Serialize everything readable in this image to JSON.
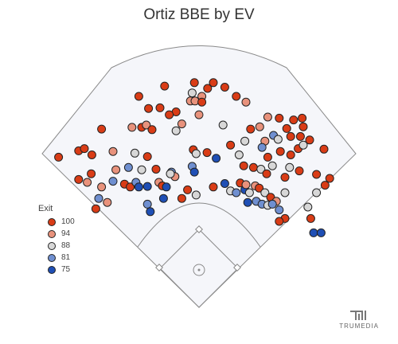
{
  "title": "Ortiz BBE by EV",
  "brand": {
    "name": "TRUMEDIA"
  },
  "legend": {
    "title": "Exit",
    "items": [
      {
        "label": "100",
        "color": "#d93c16"
      },
      {
        "label": "94",
        "color": "#e8927c"
      },
      {
        "label": "88",
        "color": "#d7d7d7"
      },
      {
        "label": "81",
        "color": "#6f8fd0"
      },
      {
        "label": "75",
        "color": "#1f4fb5"
      }
    ]
  },
  "chart_data": {
    "type": "scatter",
    "description_units": "hit location in field feet (x: left/right of home, y: distance toward center); ev = exit velocity mph",
    "legend_stops": [
      100,
      94,
      88,
      81,
      75
    ],
    "points": [
      {
        "x": -60,
        "y": 386,
        "ev": 101
      },
      {
        "x": -105,
        "y": 368,
        "ev": 102
      },
      {
        "x": -88,
        "y": 347,
        "ev": 100
      },
      {
        "x": -68,
        "y": 348,
        "ev": 99
      },
      {
        "x": -8,
        "y": 392,
        "ev": 101
      },
      {
        "x": 25,
        "y": 392,
        "ev": 100
      },
      {
        "x": 15,
        "y": 382,
        "ev": 99
      },
      {
        "x": -15,
        "y": 360,
        "ev": 95
      },
      {
        "x": -7,
        "y": 360,
        "ev": 94
      },
      {
        "x": 5,
        "y": 368,
        "ev": 92
      },
      {
        "x": -12,
        "y": 374,
        "ev": 88
      },
      {
        "x": 5,
        "y": 358,
        "ev": 101
      },
      {
        "x": 45,
        "y": 384,
        "ev": 100
      },
      {
        "x": 65,
        "y": 368,
        "ev": 99
      },
      {
        "x": 82,
        "y": 358,
        "ev": 94
      },
      {
        "x": -40,
        "y": 341,
        "ev": 102
      },
      {
        "x": -52,
        "y": 336,
        "ev": 99
      },
      {
        "x": 0,
        "y": 336,
        "ev": 95
      },
      {
        "x": 42,
        "y": 318,
        "ev": 88
      },
      {
        "x": 90,
        "y": 311,
        "ev": 100
      },
      {
        "x": 120,
        "y": 332,
        "ev": 94
      },
      {
        "x": 140,
        "y": 330,
        "ev": 100
      },
      {
        "x": 165,
        "y": 327,
        "ev": 101
      },
      {
        "x": 180,
        "y": 330,
        "ev": 100
      },
      {
        "x": 182,
        "y": 315,
        "ev": 101
      },
      {
        "x": 153,
        "y": 312,
        "ev": 101
      },
      {
        "x": 106,
        "y": 315,
        "ev": 94
      },
      {
        "x": 130,
        "y": 300,
        "ev": 81
      },
      {
        "x": 138,
        "y": 293,
        "ev": 88
      },
      {
        "x": 160,
        "y": 298,
        "ev": 101
      },
      {
        "x": 177,
        "y": 298,
        "ev": 101
      },
      {
        "x": 193,
        "y": 292,
        "ev": 101
      },
      {
        "x": 115,
        "y": 290,
        "ev": 94
      },
      {
        "x": 110,
        "y": 279,
        "ev": 81
      },
      {
        "x": 142,
        "y": 272,
        "ev": 100
      },
      {
        "x": 173,
        "y": 277,
        "ev": 101
      },
      {
        "x": 182,
        "y": 283,
        "ev": 88
      },
      {
        "x": 218,
        "y": 276,
        "ev": 100
      },
      {
        "x": -170,
        "y": 311,
        "ev": 101
      },
      {
        "x": -117,
        "y": 314,
        "ev": 94
      },
      {
        "x": -100,
        "y": 314,
        "ev": 100
      },
      {
        "x": -92,
        "y": 318,
        "ev": 95
      },
      {
        "x": -82,
        "y": 310,
        "ev": 100
      },
      {
        "x": -30,
        "y": 320,
        "ev": 94
      },
      {
        "x": -40,
        "y": 308,
        "ev": 88
      },
      {
        "x": -210,
        "y": 273,
        "ev": 101
      },
      {
        "x": -200,
        "y": 277,
        "ev": 101
      },
      {
        "x": -187,
        "y": 266,
        "ev": 100
      },
      {
        "x": -150,
        "y": 272,
        "ev": 94
      },
      {
        "x": -112,
        "y": 269,
        "ev": 88
      },
      {
        "x": -90,
        "y": 263,
        "ev": 100
      },
      {
        "x": -10,
        "y": 275,
        "ev": 101
      },
      {
        "x": -5,
        "y": 268,
        "ev": 88
      },
      {
        "x": 14,
        "y": 270,
        "ev": 100
      },
      {
        "x": 55,
        "y": 283,
        "ev": 101
      },
      {
        "x": 80,
        "y": 290,
        "ev": 88
      },
      {
        "x": -245,
        "y": 262,
        "ev": 101
      },
      {
        "x": -188,
        "y": 233,
        "ev": 100
      },
      {
        "x": -145,
        "y": 240,
        "ev": 94
      },
      {
        "x": -123,
        "y": 244,
        "ev": 81
      },
      {
        "x": -100,
        "y": 240,
        "ev": 88
      },
      {
        "x": -75,
        "y": 241,
        "ev": 100
      },
      {
        "x": -48,
        "y": 236,
        "ev": 81
      },
      {
        "x": -42,
        "y": 228,
        "ev": 94
      },
      {
        "x": -12,
        "y": 246,
        "ev": 81
      },
      {
        "x": -8,
        "y": 236,
        "ev": 75
      },
      {
        "x": 30,
        "y": 260,
        "ev": 75
      },
      {
        "x": 70,
        "y": 266,
        "ev": 88
      },
      {
        "x": 78,
        "y": 247,
        "ev": 100
      },
      {
        "x": 95,
        "y": 244,
        "ev": 101
      },
      {
        "x": 108,
        "y": 241,
        "ev": 88
      },
      {
        "x": 120,
        "y": 262,
        "ev": 100
      },
      {
        "x": 118,
        "y": 233,
        "ev": 101
      },
      {
        "x": 128,
        "y": 247,
        "ev": 88
      },
      {
        "x": 150,
        "y": 227,
        "ev": 101
      },
      {
        "x": 158,
        "y": 244,
        "ev": 88
      },
      {
        "x": 175,
        "y": 238,
        "ev": 101
      },
      {
        "x": 205,
        "y": 232,
        "ev": 101
      },
      {
        "x": 228,
        "y": 225,
        "ev": 101
      },
      {
        "x": 160,
        "y": 266,
        "ev": 101
      },
      {
        "x": -210,
        "y": 223,
        "ev": 101
      },
      {
        "x": -195,
        "y": 218,
        "ev": 94
      },
      {
        "x": -170,
        "y": 210,
        "ev": 94
      },
      {
        "x": -150,
        "y": 220,
        "ev": 81
      },
      {
        "x": -130,
        "y": 215,
        "ev": 100
      },
      {
        "x": -120,
        "y": 210,
        "ev": 101
      },
      {
        "x": -110,
        "y": 218,
        "ev": 81
      },
      {
        "x": -105,
        "y": 210,
        "ev": 75
      },
      {
        "x": -90,
        "y": 211,
        "ev": 75
      },
      {
        "x": -70,
        "y": 218,
        "ev": 94
      },
      {
        "x": -64,
        "y": 212,
        "ev": 100
      },
      {
        "x": -57,
        "y": 210,
        "ev": 75
      },
      {
        "x": -50,
        "y": 233,
        "ev": 88
      },
      {
        "x": -20,
        "y": 205,
        "ev": 101
      },
      {
        "x": 25,
        "y": 210,
        "ev": 100
      },
      {
        "x": 45,
        "y": 216,
        "ev": 75
      },
      {
        "x": 55,
        "y": 203,
        "ev": 88
      },
      {
        "x": 65,
        "y": 200,
        "ev": 81
      },
      {
        "x": 72,
        "y": 217,
        "ev": 101
      },
      {
        "x": 80,
        "y": 205,
        "ev": 75
      },
      {
        "x": 82,
        "y": 214,
        "ev": 94
      },
      {
        "x": 88,
        "y": 200,
        "ev": 88
      },
      {
        "x": 98,
        "y": 212,
        "ev": 94
      },
      {
        "x": 105,
        "y": 208,
        "ev": 101
      },
      {
        "x": 115,
        "y": 200,
        "ev": 88
      },
      {
        "x": 125,
        "y": 192,
        "ev": 101
      },
      {
        "x": 135,
        "y": 185,
        "ev": 94
      },
      {
        "x": 150,
        "y": 200,
        "ev": 88
      },
      {
        "x": 220,
        "y": 213,
        "ev": 101
      },
      {
        "x": 205,
        "y": 200,
        "ev": 88
      },
      {
        "x": -175,
        "y": 190,
        "ev": 81
      },
      {
        "x": -160,
        "y": 183,
        "ev": 94
      },
      {
        "x": -90,
        "y": 180,
        "ev": 81
      },
      {
        "x": -30,
        "y": 190,
        "ev": 101
      },
      {
        "x": -5,
        "y": 196,
        "ev": 88
      },
      {
        "x": 85,
        "y": 183,
        "ev": 75
      },
      {
        "x": 100,
        "y": 185,
        "ev": 81
      },
      {
        "x": 110,
        "y": 180,
        "ev": 81
      },
      {
        "x": 120,
        "y": 178,
        "ev": 88
      },
      {
        "x": 128,
        "y": 180,
        "ev": 81
      },
      {
        "x": 140,
        "y": 170,
        "ev": 81
      },
      {
        "x": -62,
        "y": 190,
        "ev": 75
      },
      {
        "x": -180,
        "y": 172,
        "ev": 101
      },
      {
        "x": -85,
        "y": 167,
        "ev": 75
      },
      {
        "x": 195,
        "y": 155,
        "ev": 101
      },
      {
        "x": 190,
        "y": 175,
        "ev": 88
      },
      {
        "x": 150,
        "y": 155,
        "ev": 100
      },
      {
        "x": 140,
        "y": 150,
        "ev": 101
      },
      {
        "x": 200,
        "y": 130,
        "ev": 75
      },
      {
        "x": 213,
        "y": 130,
        "ev": 75
      }
    ]
  }
}
